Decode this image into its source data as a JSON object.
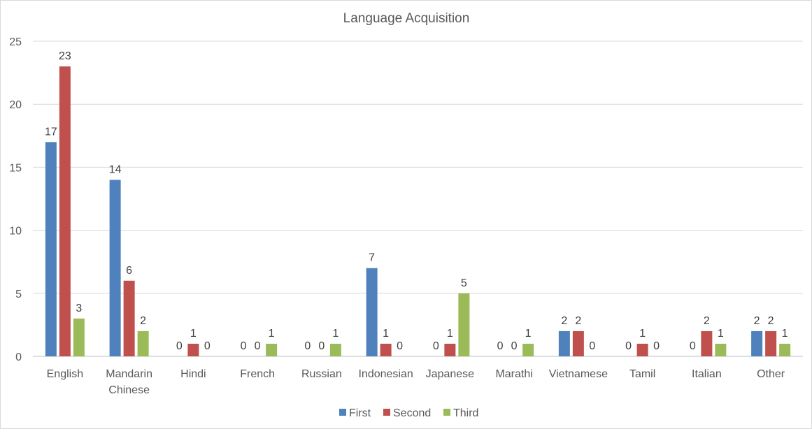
{
  "chart_data": {
    "type": "bar",
    "title": "Language Acquisition",
    "xlabel": "",
    "ylabel": "",
    "ylim": [
      0,
      25
    ],
    "y_ticks": [
      0,
      5,
      10,
      15,
      20,
      25
    ],
    "grid": true,
    "legend_position": "bottom",
    "categories": [
      [
        "English"
      ],
      [
        "Mandarin",
        "Chinese"
      ],
      [
        "Hindi"
      ],
      [
        "French"
      ],
      [
        "Russian"
      ],
      [
        "Indonesian"
      ],
      [
        "Japanese"
      ],
      [
        "Marathi"
      ],
      [
        "Vietnamese"
      ],
      [
        "Tamil"
      ],
      [
        "Italian"
      ],
      [
        "Other"
      ]
    ],
    "series": [
      {
        "name": "First",
        "color": "#4f81bd",
        "values": [
          17,
          14,
          0,
          0,
          0,
          7,
          0,
          0,
          2,
          0,
          0,
          2
        ]
      },
      {
        "name": "Second",
        "color": "#c0504d",
        "values": [
          23,
          6,
          1,
          0,
          0,
          1,
          1,
          0,
          2,
          1,
          2,
          2
        ]
      },
      {
        "name": "Third",
        "color": "#9bbb59",
        "values": [
          3,
          2,
          0,
          1,
          1,
          0,
          5,
          1,
          0,
          0,
          1,
          1
        ]
      }
    ]
  }
}
